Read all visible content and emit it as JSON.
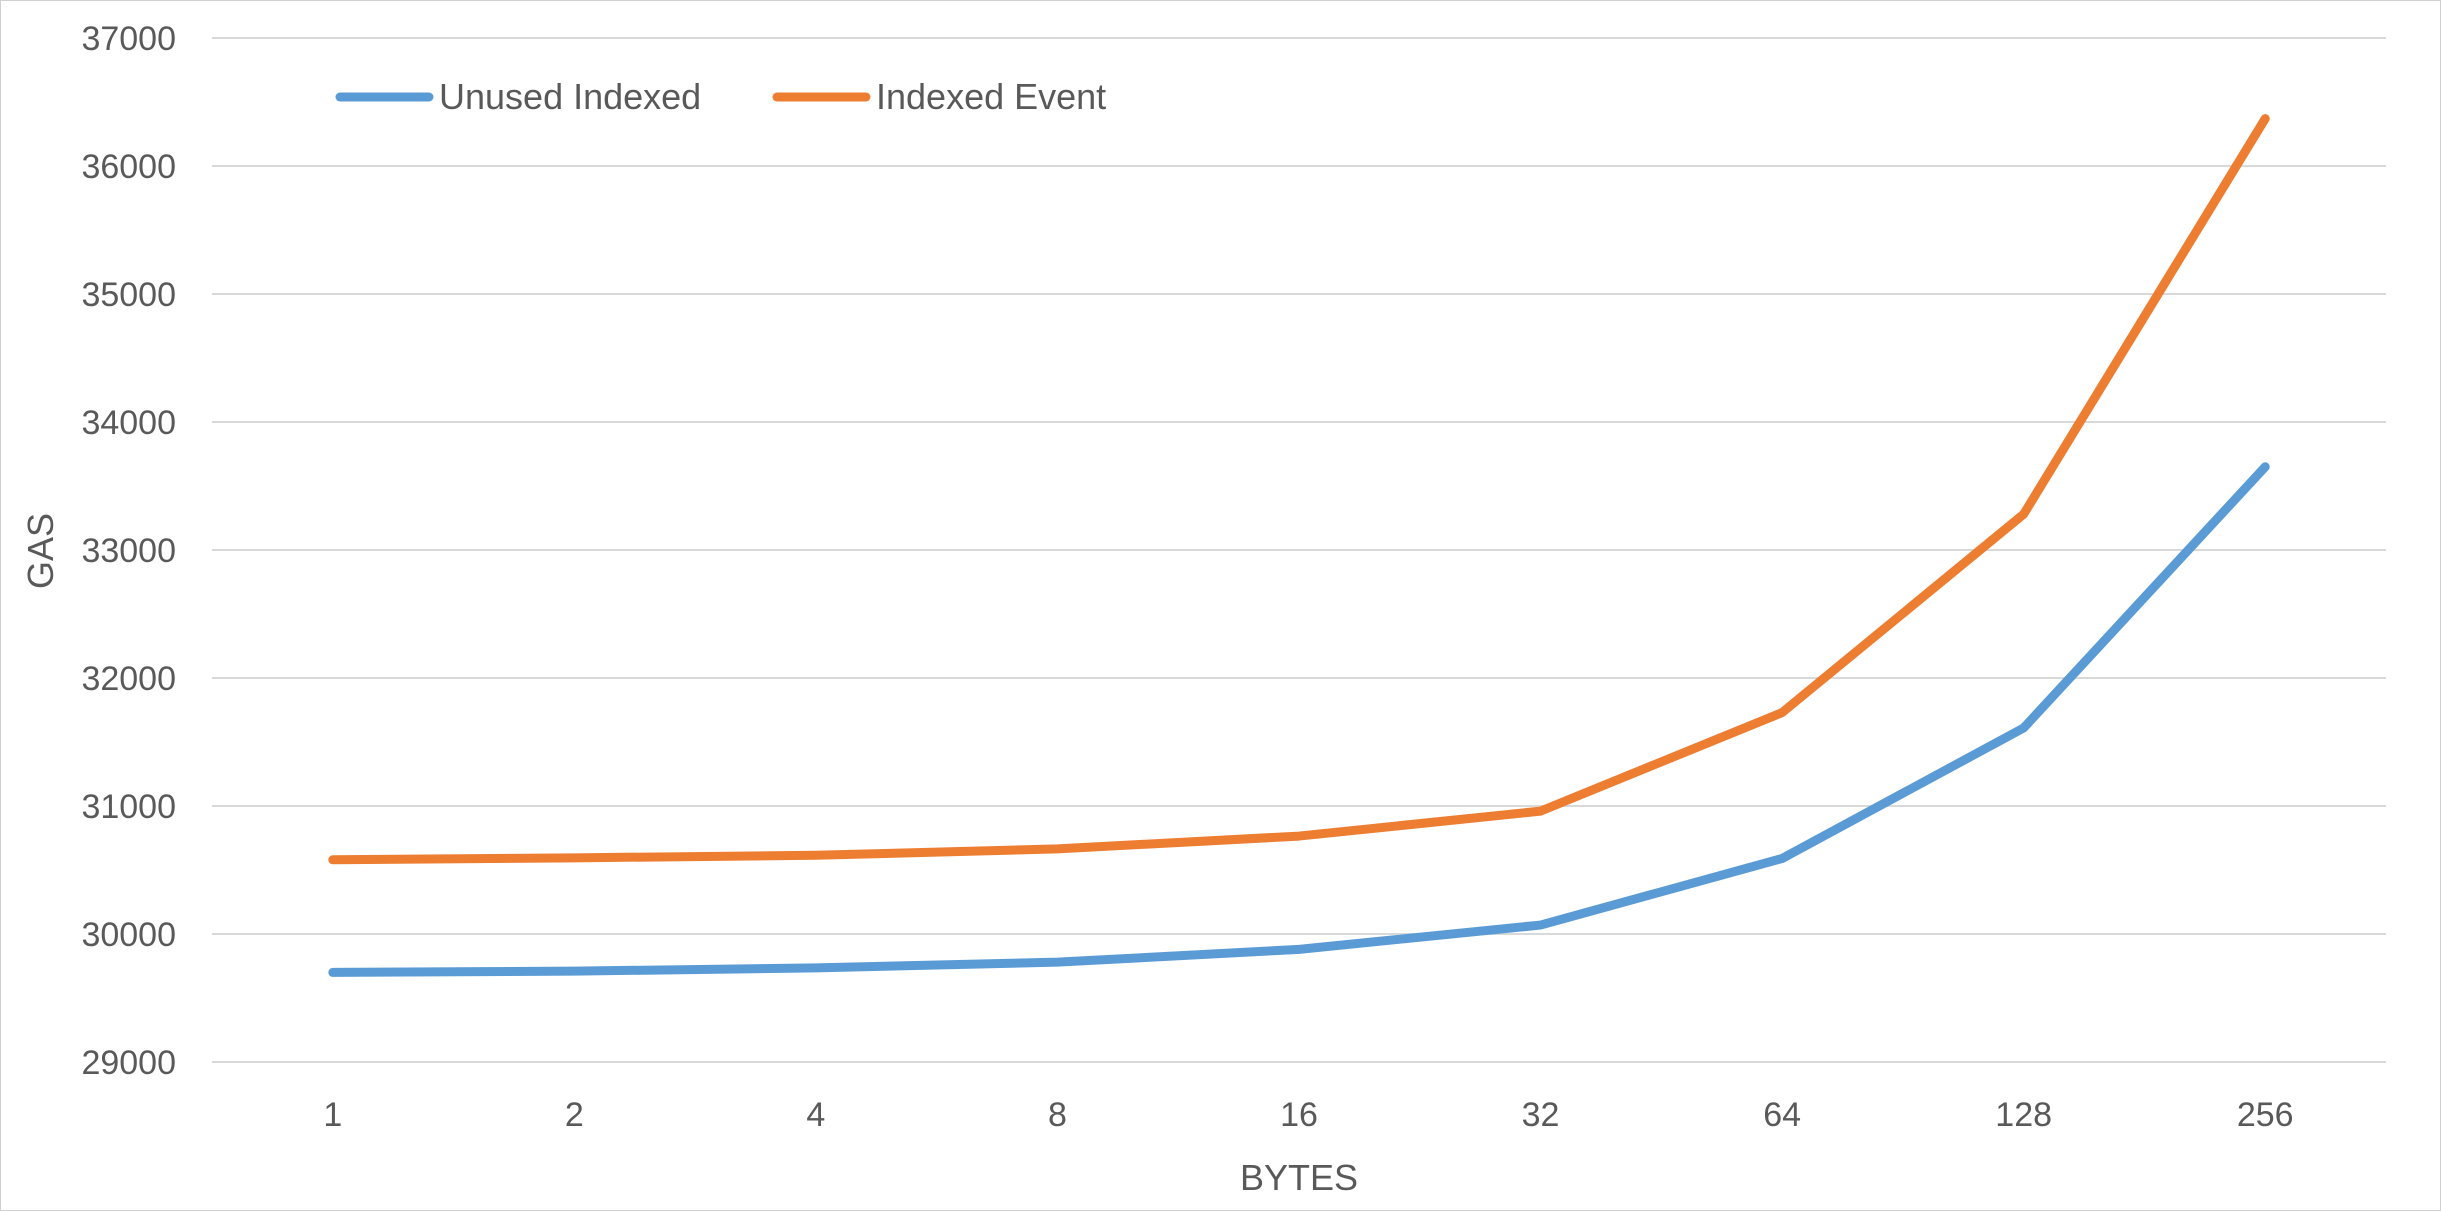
{
  "chart_data": {
    "type": "line",
    "title": "",
    "xlabel": "BYTES",
    "ylabel": "GAS",
    "categories": [
      "1",
      "2",
      "4",
      "8",
      "16",
      "32",
      "64",
      "128",
      "256"
    ],
    "ylim": [
      29000,
      37000
    ],
    "yticks": [
      "29000",
      "30000",
      "31000",
      "32000",
      "33000",
      "34000",
      "35000",
      "36000",
      "37000"
    ],
    "grid": true,
    "legend_position": "top-left",
    "series": [
      {
        "name": "Unused Indexed",
        "color": "#5b9bd5",
        "values": [
          29700,
          29710,
          29735,
          29780,
          29880,
          30070,
          30590,
          31610,
          33650
        ]
      },
      {
        "name": "Indexed Event",
        "color": "#ed7d31",
        "values": [
          30580,
          30595,
          30615,
          30665,
          30765,
          30960,
          31730,
          33280,
          36370
        ]
      }
    ]
  }
}
